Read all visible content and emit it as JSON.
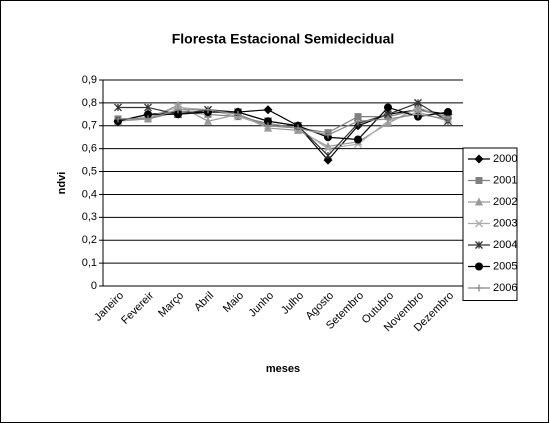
{
  "chart_data": {
    "type": "line",
    "title": "Floresta Estacional Semidecidual",
    "xlabel": "meses",
    "ylabel": "ndvi",
    "categories": [
      "Janeiro",
      "Fevereir",
      "Março",
      "Abril",
      "Maio",
      "Junho",
      "Julho",
      "Agosto",
      "Setembro",
      "Outubro",
      "Novembro",
      "Dezembro"
    ],
    "series": [
      {
        "name": "2000",
        "color": "#000000",
        "marker": "diamond",
        "values": [
          0.72,
          0.75,
          0.76,
          0.76,
          0.76,
          0.77,
          0.7,
          0.55,
          0.7,
          0.75,
          0.77,
          0.75
        ]
      },
      {
        "name": "2001",
        "color": "#808080",
        "marker": "square",
        "values": [
          0.73,
          0.73,
          0.76,
          0.75,
          0.74,
          0.71,
          0.69,
          0.67,
          0.74,
          0.74,
          0.77,
          0.74
        ]
      },
      {
        "name": "2002",
        "color": "#999999",
        "marker": "triangle",
        "values": [
          0.72,
          0.73,
          0.79,
          0.72,
          0.75,
          0.69,
          0.68,
          0.61,
          0.63,
          0.71,
          0.78,
          0.73
        ]
      },
      {
        "name": "2003",
        "color": "#aaaaaa",
        "marker": "x",
        "values": [
          0.72,
          0.74,
          0.78,
          0.77,
          0.74,
          0.7,
          0.69,
          0.6,
          0.62,
          0.72,
          0.76,
          0.72
        ]
      },
      {
        "name": "2004",
        "color": "#333333",
        "marker": "star",
        "values": [
          0.78,
          0.78,
          0.75,
          0.77,
          0.76,
          0.72,
          0.7,
          0.57,
          0.71,
          0.75,
          0.8,
          0.72
        ]
      },
      {
        "name": "2005",
        "color": "#000000",
        "marker": "circle",
        "values": [
          0.72,
          0.75,
          0.75,
          0.76,
          0.76,
          0.72,
          0.7,
          0.65,
          0.64,
          0.78,
          0.74,
          0.76
        ]
      },
      {
        "name": "2006",
        "color": "#888888",
        "marker": "plus",
        "values": [
          0.73,
          0.73,
          0.77,
          0.77,
          0.75,
          0.7,
          0.69,
          0.66,
          0.72,
          0.73,
          0.75,
          0.73
        ]
      }
    ],
    "ylim": [
      0,
      0.9
    ],
    "yticks": [
      0,
      {
        "value": 0.1,
        "label": "0,1"
      },
      {
        "value": 0.2,
        "label": "0,2"
      },
      {
        "value": 0.3,
        "label": "0,3"
      },
      {
        "value": 0.4,
        "label": "0,4"
      },
      {
        "value": 0.5,
        "label": "0,5"
      },
      {
        "value": 0.6,
        "label": "0,6"
      },
      {
        "value": 0.7,
        "label": "0,7"
      },
      {
        "value": 0.8,
        "label": "0,8"
      },
      {
        "value": 0.9,
        "label": "0,9"
      }
    ],
    "grid": true,
    "legend": "right"
  }
}
